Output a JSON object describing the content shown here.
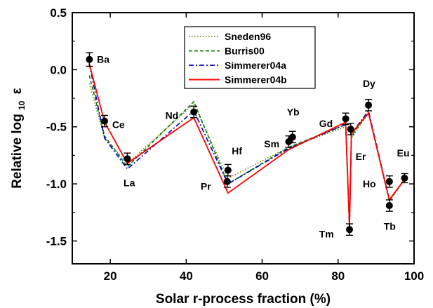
{
  "chart_data": {
    "type": "line",
    "xlabel": "Solar r-process fraction (%)",
    "ylabel": {
      "main": "Relative log",
      "sub": "10",
      "symbol": "ε"
    },
    "xlim": [
      10,
      100
    ],
    "ylim": [
      -1.7,
      0.5
    ],
    "xticks": [
      {
        "value": 20,
        "label": "20"
      },
      {
        "value": 40,
        "label": "40"
      },
      {
        "value": 60,
        "label": "60"
      },
      {
        "value": 80,
        "label": "80"
      },
      {
        "value": 100,
        "label": "100"
      }
    ],
    "yticks": [
      {
        "value": 0.5,
        "label": "0.5"
      },
      {
        "value": 0.0,
        "label": "0.0"
      },
      {
        "value": -0.5,
        "label": "-0.5"
      },
      {
        "value": -1.0,
        "label": "-1.0"
      },
      {
        "value": -1.5,
        "label": "-1.5"
      }
    ],
    "legend_position": "top-center",
    "series": [
      {
        "name": "Sneden96",
        "color": "#808000",
        "dash": "dotted",
        "points": [
          [
            14.5,
            -0.12
          ],
          [
            18.5,
            -0.6
          ],
          [
            24.5,
            -0.82
          ],
          [
            42,
            -0.3
          ],
          [
            51,
            -0.95
          ],
          [
            67,
            -0.68
          ],
          [
            82,
            -0.5
          ],
          [
            83,
            -1.38
          ],
          [
            83.5,
            -0.6
          ],
          [
            88,
            -0.38
          ],
          [
            93.5,
            -1.15
          ],
          [
            97.5,
            -0.96
          ]
        ]
      },
      {
        "name": "Burris00",
        "color": "#008000",
        "dash": "dashed",
        "points": [
          [
            14.5,
            -0.05
          ],
          [
            18.5,
            -0.58
          ],
          [
            24.5,
            -0.85
          ],
          [
            42,
            -0.28
          ],
          [
            51,
            -1.0
          ],
          [
            67,
            -0.68
          ],
          [
            82,
            -0.48
          ],
          [
            83,
            -1.38
          ],
          [
            83.5,
            -0.58
          ],
          [
            88,
            -0.38
          ],
          [
            93.5,
            -1.15
          ],
          [
            97.5,
            -0.96
          ]
        ]
      },
      {
        "name": "Simmerer04a",
        "color": "#0000c0",
        "dash": "dashdot",
        "points": [
          [
            14.5,
            0.05
          ],
          [
            18.5,
            -0.6
          ],
          [
            24.5,
            -0.87
          ],
          [
            42,
            -0.36
          ],
          [
            51,
            -1.0
          ],
          [
            67,
            -0.69
          ],
          [
            82,
            -0.48
          ],
          [
            83,
            -1.38
          ],
          [
            83.5,
            -0.56
          ],
          [
            88,
            -0.36
          ],
          [
            93.5,
            -1.14
          ],
          [
            97.5,
            -0.96
          ]
        ]
      },
      {
        "name": "Simmerer04b",
        "color": "#ff0000",
        "dash": "solid",
        "points": [
          [
            14.5,
            0.05
          ],
          [
            18.5,
            -0.46
          ],
          [
            24.5,
            -0.82
          ],
          [
            42,
            -0.42
          ],
          [
            51,
            -1.08
          ],
          [
            67,
            -0.7
          ],
          [
            82,
            -0.46
          ],
          [
            83,
            -1.38
          ],
          [
            83.5,
            -0.56
          ],
          [
            88,
            -0.38
          ],
          [
            93.5,
            -1.14
          ],
          [
            97.5,
            -0.96
          ]
        ]
      }
    ],
    "observed": [
      {
        "el": "Ba",
        "x": 14.5,
        "y": 0.09,
        "err": 0.06,
        "lx": 2.0,
        "ly": 0.0
      },
      {
        "el": "Ce",
        "x": 18.5,
        "y": -0.45,
        "err": 0.05,
        "lx": 2.0,
        "ly": -0.03
      },
      {
        "el": "La",
        "x": 24.5,
        "y": -0.78,
        "err": 0.05,
        "lx": -1.0,
        "ly": -0.21
      },
      {
        "el": "Nd",
        "x": 42.0,
        "y": -0.37,
        "err": 0.05,
        "lx": -7.5,
        "ly": -0.03
      },
      {
        "el": "Hf",
        "x": 51.0,
        "y": -0.88,
        "err": 0.05,
        "lx": 1.0,
        "ly": 0.17
      },
      {
        "el": "Pr",
        "x": 50.8,
        "y": -0.98,
        "err": 0.05,
        "lx": -7.0,
        "ly": -0.04
      },
      {
        "el": "Sm",
        "x": 67.0,
        "y": -0.63,
        "err": 0.05,
        "lx": -6.5,
        "ly": -0.02
      },
      {
        "el": "Yb",
        "x": 68.0,
        "y": -0.59,
        "err": 0.05,
        "lx": -1.5,
        "ly": 0.22
      },
      {
        "el": "Gd",
        "x": 82.0,
        "y": -0.43,
        "err": 0.05,
        "lx": -7.0,
        "ly": -0.04
      },
      {
        "el": "Tm",
        "x": 83.0,
        "y": -1.4,
        "err": 0.05,
        "lx": -8.0,
        "ly": -0.04
      },
      {
        "el": "Er",
        "x": 83.3,
        "y": -0.52,
        "err": 0.05,
        "lx": 1.3,
        "ly": -0.24
      },
      {
        "el": "Dy",
        "x": 88.0,
        "y": -0.31,
        "err": 0.05,
        "lx": -1.5,
        "ly": 0.19
      },
      {
        "el": "Ho",
        "x": 93.5,
        "y": -0.98,
        "err": 0.05,
        "lx": -7.0,
        "ly": -0.02
      },
      {
        "el": "Tb",
        "x": 93.5,
        "y": -1.19,
        "err": 0.05,
        "lx": -1.5,
        "ly": -0.18
      },
      {
        "el": "Eu",
        "x": 97.5,
        "y": -0.95,
        "err": 0.04,
        "lx": -2.0,
        "ly": 0.22
      }
    ]
  }
}
